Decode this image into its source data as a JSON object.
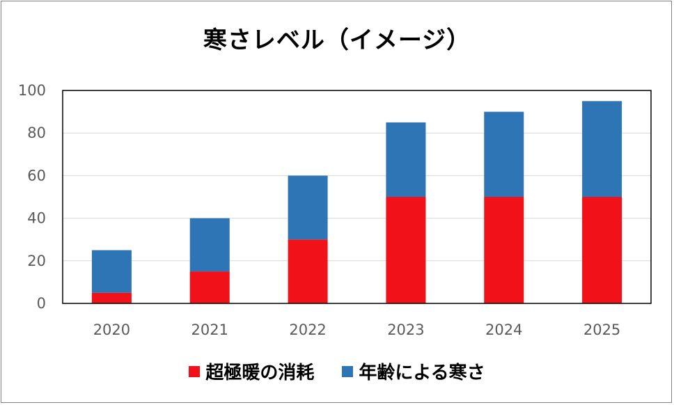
{
  "chart_data": {
    "type": "bar",
    "stacked": true,
    "title": "寒さレベル（イメージ）",
    "categories": [
      "2020",
      "2021",
      "2022",
      "2023",
      "2024",
      "2025"
    ],
    "series": [
      {
        "name": "超極暖の消耗",
        "color": "#f11119",
        "values": [
          5,
          15,
          30,
          50,
          50,
          50
        ]
      },
      {
        "name": "年齢による寒さ",
        "color": "#2e75b6",
        "values": [
          20,
          25,
          30,
          35,
          40,
          45
        ]
      }
    ],
    "yticks": [
      "0",
      "20",
      "40",
      "60",
      "80",
      "100"
    ],
    "ylim": [
      0,
      100
    ],
    "grid": true,
    "legend_position": "bottom"
  }
}
